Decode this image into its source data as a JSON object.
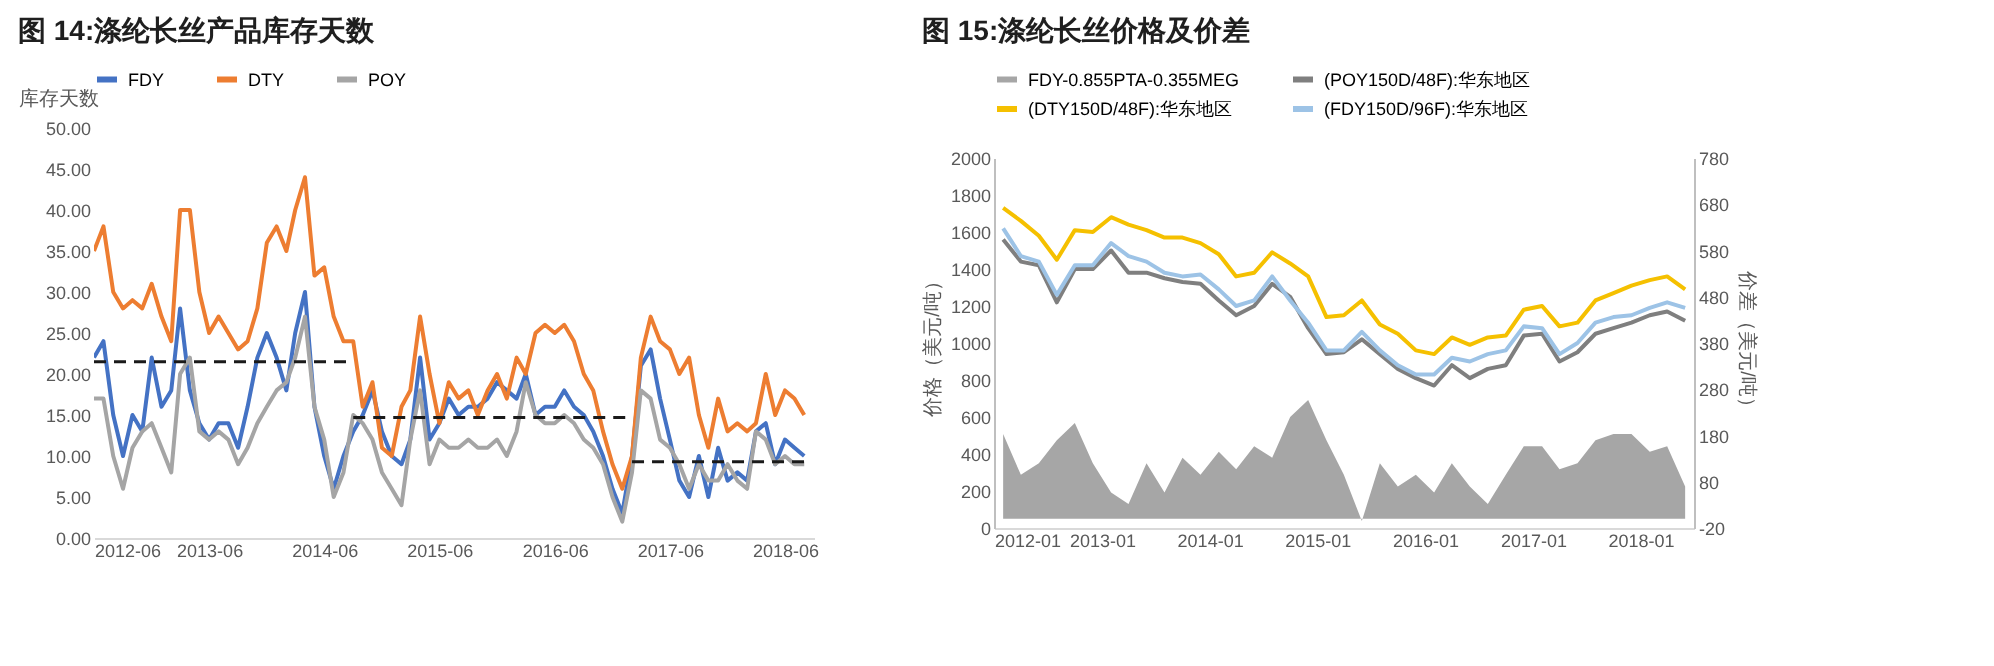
{
  "chart_data": [
    {
      "type": "line",
      "title": "图 14:涤纶长丝产品库存天数",
      "ylabel": "库存天数",
      "legend": "top",
      "x": [
        "2012-06",
        "2012-07",
        "2012-08",
        "2012-09",
        "2012-10",
        "2012-11",
        "2012-12",
        "2013-01",
        "2013-02",
        "2013-03",
        "2013-04",
        "2013-05",
        "2013-06",
        "2013-07",
        "2013-08",
        "2013-09",
        "2013-10",
        "2013-11",
        "2013-12",
        "2014-01",
        "2014-02",
        "2014-03",
        "2014-04",
        "2014-05",
        "2014-06",
        "2014-07",
        "2014-08",
        "2014-09",
        "2014-10",
        "2014-11",
        "2014-12",
        "2015-01",
        "2015-02",
        "2015-03",
        "2015-04",
        "2015-05",
        "2015-06",
        "2015-07",
        "2015-08",
        "2015-09",
        "2015-10",
        "2015-11",
        "2015-12",
        "2016-01",
        "2016-02",
        "2016-03",
        "2016-04",
        "2016-05",
        "2016-06",
        "2016-07",
        "2016-08",
        "2016-09",
        "2016-10",
        "2016-11",
        "2016-12",
        "2017-01",
        "2017-02",
        "2017-03",
        "2017-04",
        "2017-05",
        "2017-06",
        "2017-07",
        "2017-08",
        "2017-09",
        "2017-10",
        "2017-11",
        "2017-12",
        "2018-01",
        "2018-02",
        "2018-03",
        "2018-04",
        "2018-05",
        "2018-06",
        "2018-07",
        "2018-08"
      ],
      "xlim": [
        "2012-06",
        "2018-09"
      ],
      "xticks": [
        "2012-06",
        "2013-06",
        "2014-06",
        "2015-06",
        "2016-06",
        "2017-06",
        "2018-06"
      ],
      "ylim": [
        0,
        50
      ],
      "yticks": [
        {
          "value": 0,
          "label": "0.00"
        },
        {
          "value": 5,
          "label": "5.00"
        },
        {
          "value": 10,
          "label": "10.00"
        },
        {
          "value": 15,
          "label": "15.00"
        },
        {
          "value": 20,
          "label": "20.00"
        },
        {
          "value": 25,
          "label": "25.00"
        },
        {
          "value": 30,
          "label": "30.00"
        },
        {
          "value": 35,
          "label": "35.00"
        },
        {
          "value": 40,
          "label": "40.00"
        },
        {
          "value": 45,
          "label": "45.00"
        },
        {
          "value": 50,
          "label": "50.00"
        }
      ],
      "series": [
        {
          "name": "FDY",
          "color": "#4472c4",
          "values": [
            22,
            24,
            15,
            10,
            15,
            13,
            22,
            16,
            18,
            28,
            18,
            14,
            12,
            14,
            14,
            11,
            16,
            22,
            25,
            22,
            18,
            25,
            30,
            16,
            10,
            6,
            10,
            13,
            15,
            18,
            13,
            10,
            9,
            12,
            22,
            12,
            14,
            17,
            15,
            16,
            16,
            17,
            19,
            18,
            17,
            20,
            15,
            16,
            16,
            18,
            16,
            15,
            13,
            10,
            6,
            3,
            10,
            21,
            23,
            17,
            12,
            7,
            5,
            10,
            5,
            11,
            7,
            8,
            7,
            13,
            14,
            9,
            12,
            11,
            10
          ]
        },
        {
          "name": "DTY",
          "color": "#ed7d31",
          "values": [
            35,
            38,
            30,
            28,
            29,
            28,
            31,
            27,
            24,
            40,
            40,
            30,
            25,
            27,
            25,
            23,
            24,
            28,
            36,
            38,
            35,
            40,
            44,
            32,
            33,
            27,
            24,
            24,
            16,
            19,
            11,
            10,
            16,
            18,
            27,
            20,
            14,
            19,
            17,
            18,
            15,
            18,
            20,
            17,
            22,
            20,
            25,
            26,
            25,
            26,
            24,
            20,
            18,
            13,
            9,
            6,
            10,
            22,
            27,
            24,
            23,
            20,
            22,
            15,
            11,
            17,
            13,
            14,
            13,
            14,
            20,
            15,
            18,
            17,
            15
          ]
        },
        {
          "name": "POY",
          "color": "#a5a5a5",
          "values": [
            17,
            17,
            10,
            6,
            11,
            13,
            14,
            11,
            8,
            20,
            22,
            13,
            12,
            13,
            12,
            9,
            11,
            14,
            16,
            18,
            19,
            22,
            27,
            16,
            12,
            5,
            8,
            15,
            14,
            12,
            8,
            6,
            4,
            12,
            18,
            9,
            12,
            11,
            11,
            12,
            11,
            11,
            12,
            10,
            13,
            19,
            15,
            14,
            14,
            15,
            14,
            12,
            11,
            9,
            5,
            2,
            8,
            18,
            17,
            12,
            11,
            9,
            6,
            9,
            7,
            7,
            9,
            7,
            6,
            13,
            12,
            9,
            10,
            9,
            9
          ]
        },
        {
          "type": "line",
          "color": "#1a1a1a",
          "line_style": "dashed",
          "x": [
            "2012-06",
            "2014-09"
          ],
          "values": [
            21.5,
            21.5
          ]
        },
        {
          "type": "line",
          "color": "#1a1a1a",
          "line_style": "dashed",
          "x": [
            "2014-09",
            "2017-02"
          ],
          "values": [
            14.7,
            14.7
          ]
        },
        {
          "type": "line",
          "color": "#1a1a1a",
          "line_style": "dashed",
          "x": [
            "2017-02",
            "2018-08"
          ],
          "values": [
            9.3,
            9.3
          ]
        }
      ]
    },
    {
      "type": "line",
      "title": "图 15:涤纶长丝价格及价差",
      "ylabel": "价格（美元/吨）",
      "y2label": "价差（美元/吨）",
      "legend": "top",
      "x": [
        "2012-02",
        "2012-04",
        "2012-06",
        "2012-08",
        "2012-10",
        "2012-12",
        "2013-02",
        "2013-04",
        "2013-06",
        "2013-08",
        "2013-10",
        "2013-12",
        "2014-02",
        "2014-04",
        "2014-06",
        "2014-08",
        "2014-10",
        "2014-12",
        "2015-02",
        "2015-04",
        "2015-06",
        "2015-08",
        "2015-10",
        "2015-12",
        "2016-02",
        "2016-04",
        "2016-06",
        "2016-08",
        "2016-10",
        "2016-12",
        "2017-02",
        "2017-04",
        "2017-06",
        "2017-08",
        "2017-10",
        "2017-12",
        "2018-02",
        "2018-04",
        "2018-06"
      ],
      "xlim": [
        "2012-01",
        "2018-07"
      ],
      "xticks": [
        "2012-01",
        "2013-01",
        "2014-01",
        "2015-01",
        "2016-01",
        "2017-01",
        "2018-01"
      ],
      "ylim": [
        0,
        2000
      ],
      "yticks": [
        0,
        200,
        400,
        600,
        800,
        1000,
        1200,
        1400,
        1600,
        1800,
        2000
      ],
      "y2lim": [
        -20,
        780
      ],
      "y2ticks": [
        -20,
        80,
        180,
        280,
        380,
        480,
        580,
        680,
        780
      ],
      "series": [
        {
          "name": "FDY-0.855PTA-0.355MEG",
          "type": "area",
          "axis": "y2",
          "color": "#a6a6a6",
          "values": [
            183,
            95,
            120,
            170,
            207,
            120,
            57,
            32,
            120,
            57,
            132,
            95,
            145,
            107,
            157,
            132,
            220,
            257,
            170,
            95,
            -5,
            120,
            70,
            95,
            57,
            120,
            70,
            32,
            95,
            157,
            157,
            107,
            120,
            170,
            183,
            183,
            145,
            157,
            70
          ]
        },
        {
          "name": "(POY150D/48F):华东地区",
          "color": "#7f7f7f",
          "values": [
            1560,
            1440,
            1420,
            1220,
            1400,
            1400,
            1500,
            1380,
            1380,
            1350,
            1330,
            1320,
            1230,
            1150,
            1200,
            1320,
            1250,
            1080,
            940,
            950,
            1020,
            940,
            860,
            810,
            770,
            880,
            810,
            860,
            880,
            1040,
            1050,
            900,
            950,
            1050,
            1080,
            1110,
            1150,
            1170,
            1120
          ]
        },
        {
          "name": "(DTY150D/48F):华东地区",
          "color": "#f5c000",
          "values": [
            1730,
            1660,
            1580,
            1450,
            1610,
            1600,
            1680,
            1640,
            1610,
            1570,
            1570,
            1540,
            1480,
            1360,
            1380,
            1490,
            1430,
            1360,
            1140,
            1150,
            1230,
            1100,
            1050,
            960,
            940,
            1030,
            990,
            1030,
            1040,
            1180,
            1200,
            1090,
            1110,
            1230,
            1270,
            1310,
            1340,
            1360,
            1290
          ]
        },
        {
          "name": "(FDY150D/96F):华东地区",
          "color": "#9dc3e6",
          "values": [
            1620,
            1470,
            1440,
            1260,
            1420,
            1420,
            1540,
            1470,
            1440,
            1380,
            1360,
            1370,
            1290,
            1200,
            1230,
            1360,
            1230,
            1110,
            960,
            960,
            1060,
            960,
            880,
            830,
            830,
            920,
            900,
            940,
            960,
            1090,
            1080,
            940,
            1000,
            1110,
            1140,
            1150,
            1190,
            1220,
            1190
          ]
        }
      ]
    }
  ]
}
